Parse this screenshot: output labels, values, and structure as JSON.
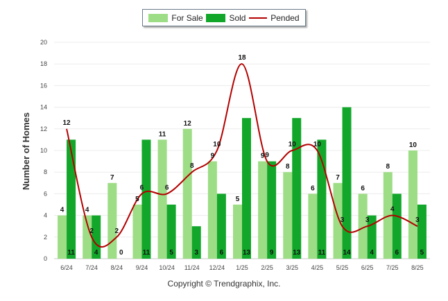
{
  "footer": {
    "copyright": "Copyright © Trendgraphix, Inc."
  },
  "legend": [
    {
      "label": "For Sale",
      "color": "#9ddd85"
    },
    {
      "label": "Sold",
      "color": "#12a72a"
    },
    {
      "label": "Pended",
      "color": "#b30000"
    }
  ],
  "chart_data": {
    "type": "bar",
    "ylabel": "Number of Homes",
    "ylim": [
      0,
      20
    ],
    "yticks": [
      0,
      2,
      4,
      6,
      8,
      10,
      12,
      14,
      16,
      18,
      20
    ],
    "categories": [
      "6/24",
      "7/24",
      "8/24",
      "9/24",
      "10/24",
      "11/24",
      "12/24",
      "1/25",
      "2/25",
      "3/25",
      "4/25",
      "5/25",
      "6/25",
      "7/25",
      "8/25"
    ],
    "series": [
      {
        "name": "For Sale",
        "type": "bar",
        "color": "#9ddd85",
        "values": [
          4,
          4,
          7,
          5,
          11,
          12,
          9,
          5,
          9,
          8,
          6,
          7,
          6,
          8,
          10
        ]
      },
      {
        "name": "Sold",
        "type": "bar",
        "color": "#12a72a",
        "values": [
          11,
          4,
          0,
          11,
          5,
          3,
          6,
          13,
          9,
          13,
          11,
          14,
          4,
          6,
          5
        ]
      },
      {
        "name": "Pended",
        "type": "line",
        "color": "#b30000",
        "values": [
          12,
          2,
          2,
          6,
          6,
          8,
          10,
          18,
          9,
          10,
          10,
          3,
          3,
          4,
          3
        ]
      }
    ],
    "grid": true,
    "legend_position": "top-center"
  }
}
